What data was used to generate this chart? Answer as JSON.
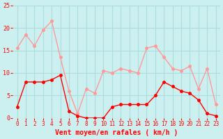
{
  "hours": [
    0,
    1,
    2,
    3,
    4,
    5,
    6,
    7,
    8,
    9,
    10,
    11,
    12,
    13,
    14,
    15,
    16,
    17,
    18,
    19,
    20,
    21,
    22,
    23
  ],
  "wind_avg": [
    2.5,
    8,
    8,
    8,
    8.5,
    9.5,
    1.5,
    0.5,
    0,
    0,
    0,
    2.5,
    3,
    3,
    3,
    3,
    5,
    8,
    7,
    6,
    5.5,
    4,
    1,
    0.5
  ],
  "wind_gust": [
    15.5,
    18.5,
    16,
    19.5,
    21.5,
    13.5,
    6,
    1,
    6.5,
    5.5,
    10.5,
    10,
    11,
    10.5,
    10,
    15.5,
    16,
    13.5,
    11,
    10.5,
    11.5,
    6.5,
    11,
    3
  ],
  "color_avg": "#ff0000",
  "color_gust": "#ff9999",
  "bg_color": "#ccf0f0",
  "grid_color": "#aadddd",
  "xlabel": "Vent moyen/en rafales ( km/h )",
  "xlabel_color": "#ff0000",
  "tick_color": "#ff0000",
  "ylim": [
    0,
    25
  ],
  "yticks": [
    0,
    5,
    10,
    15,
    20,
    25
  ]
}
